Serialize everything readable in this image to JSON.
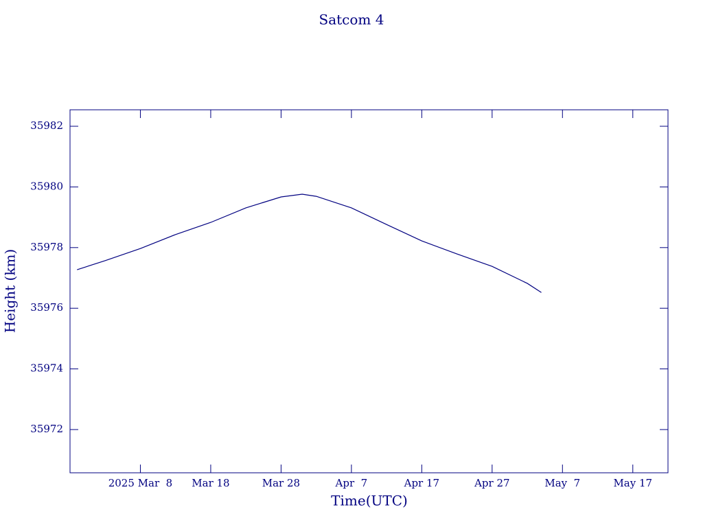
{
  "chart_data": {
    "type": "line",
    "title": "Satcom 4",
    "x_label": "Time(UTC)",
    "y_label": "Height (km)",
    "x": [
      "2025-02-27",
      "2025-03-03",
      "2025-03-08",
      "2025-03-13",
      "2025-03-18",
      "2025-03-23",
      "2025-03-28",
      "2025-03-31",
      "2025-04-02",
      "2025-04-07",
      "2025-04-12",
      "2025-04-17",
      "2025-04-22",
      "2025-04-27",
      "2025-05-02",
      "2025-05-04"
    ],
    "series": [
      {
        "name": "Height",
        "color": "#000080",
        "values": [
          35977.27,
          35977.57,
          35977.97,
          35978.43,
          35978.83,
          35979.31,
          35979.67,
          35979.76,
          35979.69,
          35979.31,
          35978.76,
          35978.22,
          35977.79,
          35977.38,
          35976.82,
          35976.52
        ]
      }
    ],
    "xlim": [
      "2025-02-26",
      "2025-05-22"
    ],
    "xticks": [
      {
        "value": "2025-03-08",
        "label": "2025 Mar  8"
      },
      {
        "value": "2025-03-18",
        "label": "Mar 18"
      },
      {
        "value": "2025-03-28",
        "label": "Mar 28"
      },
      {
        "value": "2025-04-07",
        "label": "Apr  7"
      },
      {
        "value": "2025-04-17",
        "label": "Apr 17"
      },
      {
        "value": "2025-04-27",
        "label": "Apr 27"
      },
      {
        "value": "2025-05-07",
        "label": "May  7"
      },
      {
        "value": "2025-05-17",
        "label": "May 17"
      }
    ],
    "ylim": [
      35970.575,
      35982.543
    ],
    "yticks": [
      35972,
      35974,
      35976,
      35978,
      35980,
      35982
    ],
    "grid": false
  }
}
